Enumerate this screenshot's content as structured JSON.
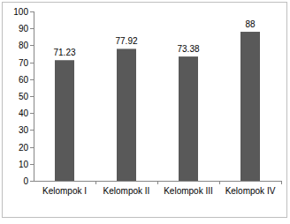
{
  "chart_data": {
    "type": "bar",
    "categories": [
      "Kelompok I",
      "Kelompok II",
      "Kelompok III",
      "Kelompok IV"
    ],
    "values": [
      71.23,
      77.92,
      73.38,
      88
    ],
    "color": "#595959",
    "ylim": [
      0,
      100
    ],
    "yticks": [
      0,
      10,
      20,
      30,
      40,
      50,
      60,
      70,
      80,
      90,
      100
    ],
    "grid": false,
    "data_labels": true
  }
}
